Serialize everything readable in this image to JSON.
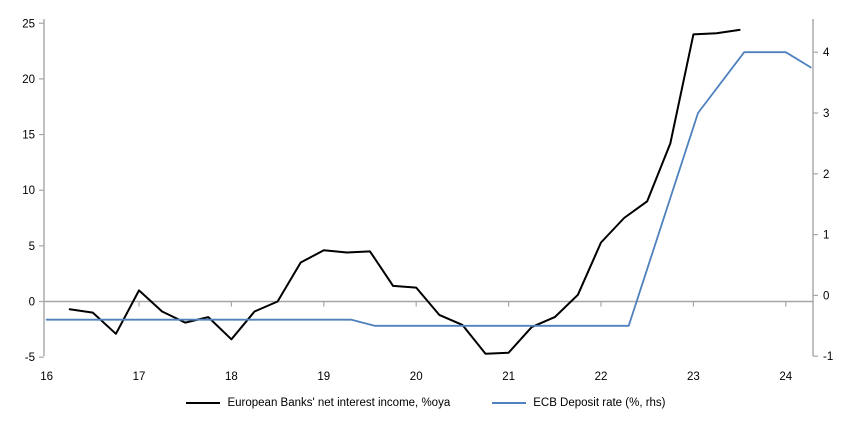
{
  "page": {
    "background": "#ffffff",
    "title": ""
  },
  "legend": {
    "series1_label": "European Banks' net interest income, %oya",
    "series2_label": "ECB Deposit rate (%, rhs)"
  },
  "colors": {
    "series1": "#000000",
    "series2": "#4e81bd",
    "axis": "#a6a6a6",
    "zero_line": "#a6a6a6",
    "text": "#000000"
  },
  "chart_data": {
    "type": "line",
    "title": "",
    "xlabel": "",
    "ylabel_left": "",
    "ylabel_right": "",
    "grid": "zero-line-only",
    "legend_position": "bottom-center",
    "x_axis": {
      "ticks": [
        16,
        17,
        18,
        19,
        20,
        21,
        22,
        23,
        24
      ],
      "range": [
        15.97,
        24.3
      ]
    },
    "left_axis": {
      "ticks": [
        25,
        20,
        15,
        10,
        5,
        0,
        -5
      ],
      "range": [
        -5,
        25.3
      ]
    },
    "right_axis": {
      "ticks": [
        4,
        3,
        2,
        1,
        0,
        -1
      ],
      "range": [
        -1,
        4.55
      ]
    },
    "series": [
      {
        "name": "European Banks' net interest income, %oya",
        "axis": "left",
        "color": "#000000",
        "width": 2,
        "x": [
          16.25,
          16.5,
          16.75,
          17.0,
          17.25,
          17.5,
          17.75,
          18.0,
          18.25,
          18.5,
          18.75,
          19.0,
          19.25,
          19.5,
          19.75,
          20.0,
          20.25,
          20.5,
          20.75,
          21.0,
          21.25,
          21.5,
          21.75,
          22.0,
          22.25,
          22.5,
          22.75,
          23.0,
          23.25,
          23.5
        ],
        "values": [
          -0.7,
          -1.0,
          -2.9,
          1.0,
          -0.9,
          -1.9,
          -1.4,
          -3.4,
          -0.9,
          0.0,
          3.5,
          4.6,
          4.4,
          4.5,
          1.4,
          1.25,
          -1.2,
          -2.1,
          -4.7,
          -4.6,
          -2.3,
          -1.4,
          0.6,
          5.3,
          7.5,
          9.0,
          14.2,
          24.0,
          24.1,
          24.4
        ]
      },
      {
        "name": "ECB Deposit rate (%, rhs)",
        "axis": "right",
        "color": "#4e81bd",
        "width": 1.8,
        "x": [
          16.0,
          19.3,
          19.55,
          22.3,
          23.05,
          23.55,
          24.0,
          24.27
        ],
        "values": [
          -0.4,
          -0.4,
          -0.5,
          -0.5,
          3.0,
          4.0,
          4.0,
          3.75
        ]
      }
    ]
  }
}
